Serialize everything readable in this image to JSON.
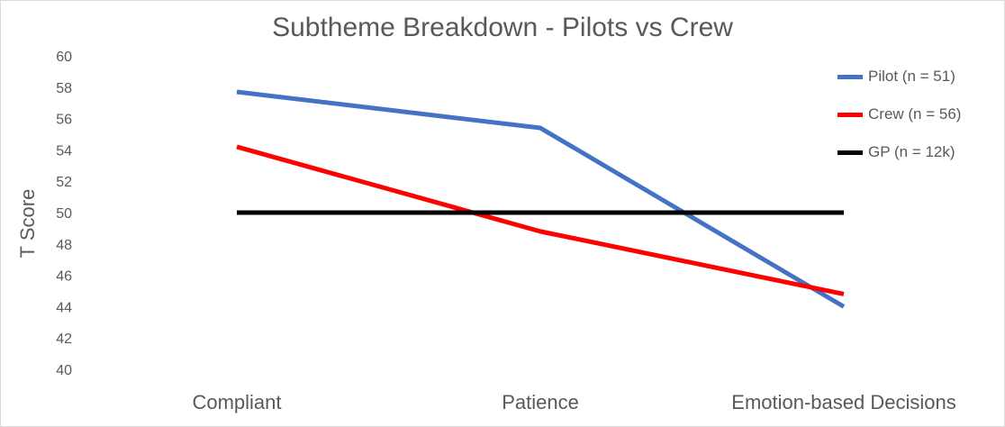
{
  "chart_data": {
    "type": "line",
    "title": "Subtheme Breakdown - Pilots vs Crew",
    "xlabel": "",
    "ylabel": "T Score",
    "ylim": [
      40,
      60
    ],
    "yticks": [
      40,
      42,
      44,
      46,
      48,
      50,
      52,
      54,
      56,
      58,
      60
    ],
    "categories": [
      "Compliant",
      "Patience",
      "Emotion-based Decisions"
    ],
    "grid": false,
    "legend_position": "right",
    "series": [
      {
        "name": "Pilot (n = 51)",
        "color": "#4472C4",
        "values": [
          57.7,
          55.4,
          44.0
        ]
      },
      {
        "name": "Crew (n = 56)",
        "color": "#FF0000",
        "values": [
          54.2,
          48.8,
          44.8
        ]
      },
      {
        "name": "GP (n = 12k)",
        "color": "#000000",
        "values": [
          50,
          50,
          50
        ]
      }
    ]
  }
}
